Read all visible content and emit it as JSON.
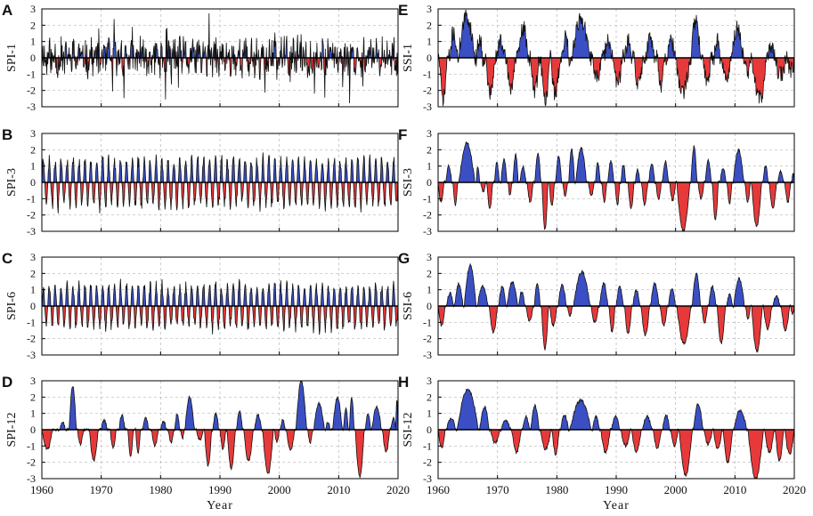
{
  "chart_data": [
    {
      "type": "area",
      "panel_label": "A",
      "ylabel": "SPI-1",
      "ylim": [
        -3,
        3
      ],
      "yticks": [
        "3",
        "2",
        "1",
        "0",
        "-1",
        "-2",
        "-3"
      ],
      "xlim": [
        1960,
        2020
      ],
      "xticks": [],
      "xlabel": "",
      "grid": true,
      "pos_color": "#3b4fc4",
      "neg_color": "#e8393a",
      "pattern": "monthly",
      "series": {
        "amp": 1.0,
        "seed": 11
      }
    },
    {
      "type": "area",
      "panel_label": "B",
      "ylabel": "SPI-3",
      "ylim": [
        -3,
        3
      ],
      "yticks": [
        "3",
        "2",
        "1",
        "0",
        "-1",
        "-2",
        "-3"
      ],
      "xlim": [
        1960,
        2020
      ],
      "xticks": [],
      "xlabel": "",
      "grid": true,
      "pos_color": "#3b4fc4",
      "neg_color": "#e8393a",
      "pattern": "seasonal",
      "series": {
        "amp": 1.35,
        "seed": 23
      }
    },
    {
      "type": "area",
      "panel_label": "C",
      "ylabel": "SPI-6",
      "ylim": [
        -3,
        3
      ],
      "yticks": [
        "3",
        "2",
        "1",
        "0",
        "-1",
        "-2",
        "-3"
      ],
      "xlim": [
        1960,
        2020
      ],
      "xticks": [],
      "xlabel": "",
      "grid": true,
      "pos_color": "#3b4fc4",
      "neg_color": "#e8393a",
      "pattern": "seasonal",
      "series": {
        "amp": 1.25,
        "seed": 37
      }
    },
    {
      "type": "area",
      "panel_label": "D",
      "ylabel": "SPI-12",
      "ylim": [
        -3,
        3
      ],
      "yticks": [
        "3",
        "2",
        "1",
        "0",
        "-1",
        "-2",
        "-3"
      ],
      "xlim": [
        1960,
        2020
      ],
      "xticks": [
        "1960",
        "1970",
        "1980",
        "1990",
        "2000",
        "2010",
        "2020"
      ],
      "xlabel": "Year",
      "grid": true,
      "pos_color": "#3b4fc4",
      "neg_color": "#e8393a",
      "pattern": "events",
      "events": [
        [
          1960.0,
          1961.8,
          -1.2
        ],
        [
          1963.0,
          1964.0,
          0.5
        ],
        [
          1964.6,
          1965.8,
          2.7
        ],
        [
          1966.0,
          1967.0,
          -0.9
        ],
        [
          1968.0,
          1969.5,
          -1.9
        ],
        [
          1970.0,
          1971.0,
          0.6
        ],
        [
          1971.5,
          1972.5,
          -1.1
        ],
        [
          1973.0,
          1974.0,
          0.9
        ],
        [
          1974.5,
          1975.4,
          -1.6
        ],
        [
          1975.8,
          1976.6,
          -1.4
        ],
        [
          1977.0,
          1978.0,
          0.7
        ],
        [
          1978.5,
          1979.6,
          -1.0
        ],
        [
          1980.0,
          1981.0,
          0.5
        ],
        [
          1981.3,
          1982.2,
          -0.8
        ],
        [
          1982.4,
          1983.2,
          1.0
        ],
        [
          1983.4,
          1984.0,
          -0.5
        ],
        [
          1984.1,
          1985.7,
          2.0
        ],
        [
          1986.0,
          1987.2,
          -0.6
        ],
        [
          1987.4,
          1988.6,
          -2.2
        ],
        [
          1988.8,
          1989.8,
          1.0
        ],
        [
          1990.0,
          1991.0,
          -1.2
        ],
        [
          1991.2,
          1992.6,
          -2.4
        ],
        [
          1992.8,
          1993.8,
          1.1
        ],
        [
          1994.0,
          1995.6,
          -1.9
        ],
        [
          1995.8,
          1997.0,
          0.9
        ],
        [
          1997.2,
          1999.0,
          -2.7
        ],
        [
          1999.2,
          2000.0,
          -0.8
        ],
        [
          2000.2,
          2001.0,
          0.6
        ],
        [
          2001.2,
          2002.6,
          -1.2
        ],
        [
          2002.8,
          2004.6,
          3.0
        ],
        [
          2004.8,
          2005.6,
          -0.8
        ],
        [
          2005.8,
          2007.6,
          1.6
        ],
        [
          2007.8,
          2008.6,
          0.5
        ],
        [
          2009.0,
          2010.6,
          2.0
        ],
        [
          2010.8,
          2011.6,
          1.3
        ],
        [
          2011.8,
          2012.6,
          2.0
        ],
        [
          2012.8,
          2014.3,
          -2.9
        ],
        [
          2014.5,
          2015.4,
          1.0
        ],
        [
          2015.6,
          2017.2,
          1.4
        ],
        [
          2017.4,
          2018.6,
          -1.4
        ],
        [
          2018.8,
          2019.6,
          0.7
        ],
        [
          2019.6,
          2020.0,
          1.8
        ]
      ]
    },
    {
      "type": "area",
      "panel_label": "E",
      "ylabel": "SSI-1",
      "ylim": [
        -3,
        3
      ],
      "yticks": [
        "3",
        "2",
        "1",
        "0",
        "-1",
        "-2",
        "-3"
      ],
      "xlim": [
        1960,
        2020
      ],
      "xticks": [],
      "xlabel": "",
      "grid": true,
      "pos_color": "#3b4fc4",
      "neg_color": "#e8393a",
      "pattern": "spiky",
      "events": [
        [
          1960.2,
          1961.5,
          -2.6
        ],
        [
          1962.0,
          1963.2,
          1.6
        ],
        [
          1963.4,
          1966.2,
          2.5
        ],
        [
          1966.5,
          1967.5,
          1.2
        ],
        [
          1968.0,
          1969.6,
          -2.2
        ],
        [
          1970.0,
          1971.0,
          1.3
        ],
        [
          1971.5,
          1973.0,
          -1.8
        ],
        [
          1973.5,
          1975.2,
          1.8
        ],
        [
          1975.5,
          1977.0,
          -2.0
        ],
        [
          1977.3,
          1978.8,
          -2.6
        ],
        [
          1979.0,
          1980.5,
          -2.2
        ],
        [
          1981.0,
          1982.0,
          1.4
        ],
        [
          1982.5,
          1985.5,
          2.4
        ],
        [
          1986.0,
          1987.5,
          -1.2
        ],
        [
          1988.0,
          1989.2,
          1.3
        ],
        [
          1989.5,
          1991.0,
          -1.6
        ],
        [
          1991.5,
          1992.5,
          1.0
        ],
        [
          1993.0,
          1994.5,
          -1.6
        ],
        [
          1995.0,
          1996.5,
          1.2
        ],
        [
          1997.0,
          1998.2,
          -1.6
        ],
        [
          1998.5,
          2000.0,
          0.9
        ],
        [
          2000.0,
          2002.4,
          -2.2
        ],
        [
          2002.6,
          2004.2,
          2.3
        ],
        [
          2004.5,
          2006.0,
          -1.3
        ],
        [
          2006.5,
          2007.5,
          1.2
        ],
        [
          2007.8,
          2009.2,
          -1.4
        ],
        [
          2009.5,
          2011.4,
          1.8
        ],
        [
          2011.6,
          2012.6,
          -0.9
        ],
        [
          2012.8,
          2015.4,
          -2.5
        ],
        [
          2015.6,
          2016.6,
          0.8
        ],
        [
          2016.8,
          2018.6,
          -1.1
        ],
        [
          2018.8,
          2020.0,
          -0.8
        ]
      ]
    },
    {
      "type": "area",
      "panel_label": "F",
      "ylabel": "SSI-3",
      "ylim": [
        -3,
        3
      ],
      "yticks": [
        "3",
        "2",
        "1",
        "0",
        "-1",
        "-2",
        "-3"
      ],
      "xlim": [
        1960,
        2020
      ],
      "xticks": [],
      "xlabel": "",
      "grid": true,
      "pos_color": "#3b4fc4",
      "neg_color": "#e8393a",
      "pattern": "events",
      "events": [
        [
          1960.0,
          1961.0,
          -1.2
        ],
        [
          1961.3,
          1962.3,
          1.0
        ],
        [
          1962.5,
          1963.3,
          -1.4
        ],
        [
          1963.5,
          1966.2,
          2.4
        ],
        [
          1966.4,
          1967.0,
          1.0
        ],
        [
          1967.2,
          1968.0,
          -0.6
        ],
        [
          1968.2,
          1969.2,
          -1.6
        ],
        [
          1969.5,
          1970.3,
          1.2
        ],
        [
          1970.6,
          1971.6,
          1.4
        ],
        [
          1971.8,
          1972.4,
          -0.8
        ],
        [
          1972.6,
          1973.5,
          1.7
        ],
        [
          1973.8,
          1974.8,
          1.0
        ],
        [
          1975.0,
          1976.0,
          -1.2
        ],
        [
          1976.3,
          1977.3,
          1.8
        ],
        [
          1977.5,
          1978.5,
          -2.9
        ],
        [
          1978.7,
          1979.6,
          -1.4
        ],
        [
          1979.8,
          1980.8,
          1.6
        ],
        [
          1981.0,
          1981.8,
          -0.8
        ],
        [
          1982.0,
          1983.0,
          2.0
        ],
        [
          1983.2,
          1985.0,
          2.1
        ],
        [
          1985.3,
          1986.3,
          -0.8
        ],
        [
          1986.5,
          1987.3,
          1.2
        ],
        [
          1987.6,
          1988.4,
          -1.2
        ],
        [
          1988.6,
          1989.6,
          1.3
        ],
        [
          1989.8,
          1990.6,
          -1.4
        ],
        [
          1990.8,
          1991.6,
          1.1
        ],
        [
          1992.0,
          1993.0,
          -1.6
        ],
        [
          1993.2,
          1994.0,
          0.8
        ],
        [
          1994.3,
          1995.3,
          -1.4
        ],
        [
          1995.5,
          1996.5,
          1.2
        ],
        [
          1996.7,
          1997.6,
          -1.0
        ],
        [
          1997.8,
          1998.8,
          1.3
        ],
        [
          1999.0,
          2000.0,
          -1.1
        ],
        [
          2000.2,
          2002.4,
          -3.0
        ],
        [
          2002.6,
          2003.6,
          2.2
        ],
        [
          2003.8,
          2004.8,
          -1.0
        ],
        [
          2005.0,
          2006.0,
          1.4
        ],
        [
          2006.2,
          2007.2,
          -2.3
        ],
        [
          2007.5,
          2008.5,
          0.9
        ],
        [
          2008.7,
          2009.5,
          -1.3
        ],
        [
          2009.7,
          2011.5,
          2.0
        ],
        [
          2011.7,
          2012.6,
          -1.2
        ],
        [
          2012.8,
          2014.5,
          -2.7
        ],
        [
          2014.7,
          2015.6,
          1.0
        ],
        [
          2015.8,
          2017.0,
          -1.6
        ],
        [
          2017.2,
          2018.2,
          0.7
        ],
        [
          2018.4,
          2019.4,
          -1.2
        ],
        [
          2019.6,
          2020.0,
          0.6
        ]
      ]
    },
    {
      "type": "area",
      "panel_label": "G",
      "ylabel": "SSI-6",
      "ylim": [
        -3,
        3
      ],
      "yticks": [
        "3",
        "2",
        "1",
        "0",
        "-1",
        "-2",
        "-3"
      ],
      "xlim": [
        1960,
        2020
      ],
      "xticks": [],
      "xlabel": "",
      "grid": true,
      "pos_color": "#3b4fc4",
      "neg_color": "#e8393a",
      "pattern": "events",
      "events": [
        [
          1960.0,
          1961.2,
          -1.2
        ],
        [
          1961.4,
          1962.6,
          0.8
        ],
        [
          1962.8,
          1964.2,
          1.4
        ],
        [
          1964.4,
          1966.4,
          2.5
        ],
        [
          1966.6,
          1968.4,
          1.2
        ],
        [
          1968.6,
          1970.0,
          -1.6
        ],
        [
          1970.2,
          1971.4,
          1.2
        ],
        [
          1971.6,
          1973.4,
          1.5
        ],
        [
          1973.6,
          1974.6,
          0.9
        ],
        [
          1974.8,
          1976.0,
          -0.9
        ],
        [
          1976.2,
          1977.2,
          1.4
        ],
        [
          1977.4,
          1978.6,
          -2.6
        ],
        [
          1978.8,
          1980.0,
          -1.2
        ],
        [
          1980.2,
          1981.6,
          1.3
        ],
        [
          1981.8,
          1982.6,
          -0.6
        ],
        [
          1982.8,
          1985.6,
          2.1
        ],
        [
          1985.8,
          1987.0,
          -1.0
        ],
        [
          1987.2,
          1988.6,
          1.4
        ],
        [
          1988.8,
          1989.8,
          -1.6
        ],
        [
          1990.0,
          1991.2,
          1.2
        ],
        [
          1991.4,
          1992.6,
          -1.7
        ],
        [
          1992.8,
          1994.0,
          1.0
        ],
        [
          1994.2,
          1995.6,
          -1.8
        ],
        [
          1995.8,
          1997.2,
          1.4
        ],
        [
          1997.4,
          1998.6,
          -1.2
        ],
        [
          1998.8,
          2000.0,
          1.1
        ],
        [
          2000.2,
          2002.6,
          -2.3
        ],
        [
          2002.8,
          2004.2,
          2.0
        ],
        [
          2004.4,
          2005.4,
          -1.0
        ],
        [
          2005.6,
          2006.8,
          1.2
        ],
        [
          2007.0,
          2008.4,
          -2.3
        ],
        [
          2008.6,
          2009.6,
          0.7
        ],
        [
          2009.8,
          2011.6,
          1.7
        ],
        [
          2011.8,
          2012.6,
          -0.8
        ],
        [
          2012.8,
          2014.6,
          -2.8
        ],
        [
          2014.8,
          2016.2,
          -1.4
        ],
        [
          2016.4,
          2017.6,
          0.6
        ],
        [
          2017.8,
          2019.2,
          -1.5
        ],
        [
          2019.4,
          2020.0,
          -0.5
        ]
      ]
    },
    {
      "type": "area",
      "panel_label": "H",
      "ylabel": "SSI-12",
      "ylim": [
        -3,
        3
      ],
      "yticks": [
        "3",
        "2",
        "1",
        "0",
        "-1",
        "-2",
        "-3"
      ],
      "xlim": [
        1960,
        2020
      ],
      "xticks": [
        "1960",
        "1970",
        "1980",
        "1990",
        "2000",
        "2010",
        "2020"
      ],
      "xlabel": "Year",
      "grid": true,
      "pos_color": "#3b4fc4",
      "neg_color": "#e8393a",
      "pattern": "events",
      "events": [
        [
          1960.0,
          1961.2,
          -1.1
        ],
        [
          1961.4,
          1963.0,
          0.7
        ],
        [
          1963.2,
          1966.8,
          2.5
        ],
        [
          1967.0,
          1968.6,
          1.4
        ],
        [
          1968.8,
          1970.4,
          -0.8
        ],
        [
          1970.6,
          1972.2,
          0.6
        ],
        [
          1972.4,
          1974.0,
          -1.4
        ],
        [
          1974.2,
          1975.4,
          0.8
        ],
        [
          1975.6,
          1977.0,
          1.5
        ],
        [
          1977.2,
          1979.0,
          -1.2
        ],
        [
          1979.2,
          1980.4,
          -1.5
        ],
        [
          1980.6,
          1982.0,
          0.9
        ],
        [
          1982.2,
          1985.8,
          1.8
        ],
        [
          1986.0,
          1987.2,
          0.8
        ],
        [
          1987.4,
          1989.0,
          -1.4
        ],
        [
          1989.2,
          1990.6,
          0.8
        ],
        [
          1990.8,
          1992.4,
          -1.0
        ],
        [
          1992.6,
          1994.2,
          -1.4
        ],
        [
          1994.4,
          1996.0,
          0.8
        ],
        [
          1996.2,
          1997.6,
          -1.1
        ],
        [
          1997.8,
          1999.0,
          0.9
        ],
        [
          1999.2,
          2000.4,
          -1.0
        ],
        [
          2000.6,
          2002.8,
          -2.8
        ],
        [
          2003.0,
          2004.6,
          1.6
        ],
        [
          2004.8,
          2006.2,
          -0.9
        ],
        [
          2006.4,
          2007.8,
          -1.2
        ],
        [
          2008.0,
          2009.6,
          -2.0
        ],
        [
          2009.8,
          2012.0,
          1.2
        ],
        [
          2012.2,
          2014.8,
          -3.0
        ],
        [
          2015.0,
          2016.6,
          -1.4
        ],
        [
          2016.8,
          2018.2,
          -1.9
        ],
        [
          2018.4,
          2020.0,
          -1.5
        ]
      ]
    }
  ]
}
